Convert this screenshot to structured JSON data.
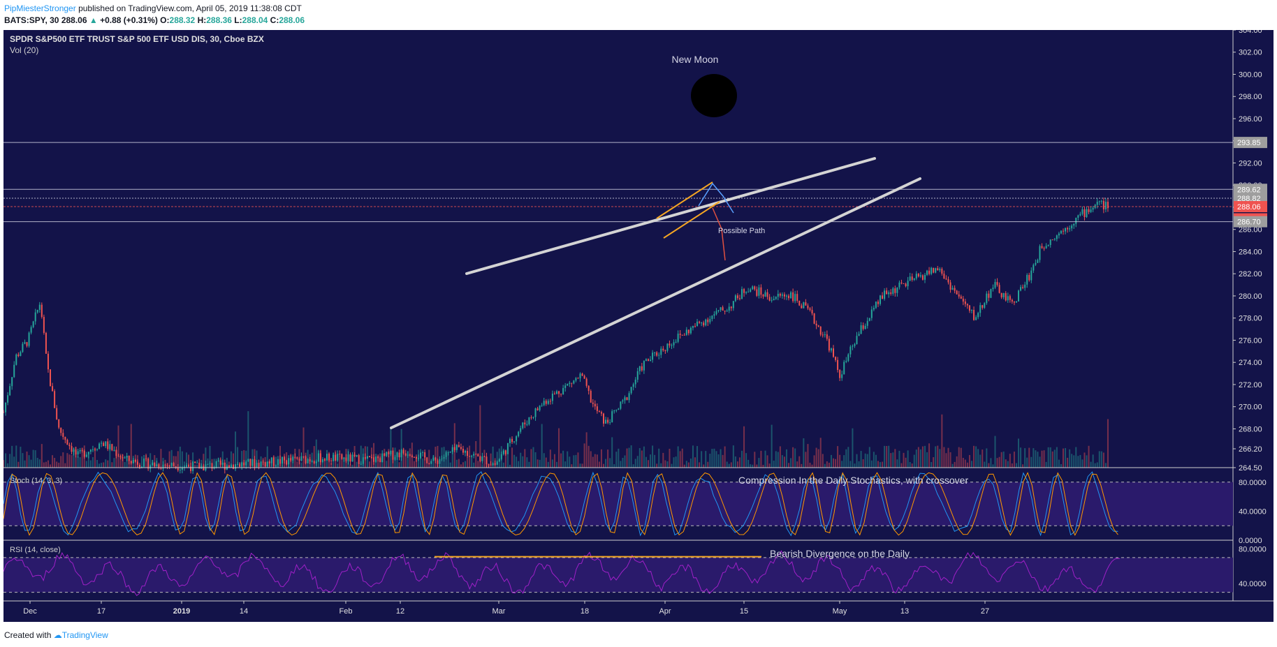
{
  "header": {
    "author": "PipMiesterStronger",
    "published_text": "published on TradingView.com, April 05, 2019 11:38:08 CDT",
    "symbol_line": "BATS:SPY, 30",
    "last_price": "288.06",
    "change": "+0.88 (+0.31%)",
    "open_label": "O:",
    "open": "288.32",
    "high_label": "H:",
    "high": "288.36",
    "low_label": "L:",
    "low": "288.04",
    "close_label": "C:",
    "close": "288.06"
  },
  "footer": {
    "created_with": "Created with",
    "brand": "TradingView"
  },
  "colors": {
    "background": "#131349",
    "lower_bg": "#2a1a6b",
    "candle_up": "#26a69a",
    "candle_down": "#ef5350",
    "trendline": "#d4d4d4",
    "stoch_k": "#2196f3",
    "stoch_d": "#ff9800",
    "rsi": "#a020c8",
    "flag": "#f5a623"
  },
  "chart_data": {
    "type": "candlestick",
    "title": "SPDR S&P500 ETF TRUST S&P 500 ETF USD DIS, 30, Cboe BZX",
    "volume_label": "Vol (20)",
    "ylim": [
      264.5,
      304.0
    ],
    "y_ticks": [
      "304.00",
      "302.00",
      "300.00",
      "298.00",
      "296.00",
      "294.00",
      "292.00",
      "290.00",
      "288.00",
      "286.00",
      "284.00",
      "282.00",
      "280.00",
      "278.00",
      "276.00",
      "274.00",
      "272.00",
      "270.00",
      "268.00",
      "266.20",
      "264.50"
    ],
    "price_tags": [
      {
        "value": 293.85,
        "label": "293.85",
        "color": "#9e9e9e"
      },
      {
        "value": 289.62,
        "label": "289.62",
        "color": "#9e9e9e"
      },
      {
        "value": 288.82,
        "label": "288.82",
        "color": "#9e9e9e"
      },
      {
        "value": 288.06,
        "label": "288.06",
        "color": "#ef5350"
      },
      {
        "value": 286.96,
        "label": "21:52",
        "color": "#ef5350"
      },
      {
        "value": 286.7,
        "label": "286.70",
        "color": "#9e9e9e"
      }
    ],
    "x_ticks": [
      "Dec",
      "17",
      "2019",
      "14",
      "Feb",
      "12",
      "Mar",
      "18",
      "Apr",
      "15",
      "May",
      "13",
      "27"
    ],
    "price_path": [
      {
        "x": 0.0,
        "y": 269.5
      },
      {
        "x": 0.01,
        "y": 274.5
      },
      {
        "x": 0.02,
        "y": 276.0
      },
      {
        "x": 0.03,
        "y": 279.5
      },
      {
        "x": 0.035,
        "y": 274.0
      },
      {
        "x": 0.045,
        "y": 268.0
      },
      {
        "x": 0.06,
        "y": 265.5
      },
      {
        "x": 0.08,
        "y": 266.8
      },
      {
        "x": 0.1,
        "y": 265.2
      },
      {
        "x": 0.12,
        "y": 264.8
      },
      {
        "x": 0.16,
        "y": 264.6
      },
      {
        "x": 0.22,
        "y": 265.0
      },
      {
        "x": 0.26,
        "y": 265.4
      },
      {
        "x": 0.3,
        "y": 265.2
      },
      {
        "x": 0.33,
        "y": 266.0
      },
      {
        "x": 0.35,
        "y": 265.0
      },
      {
        "x": 0.37,
        "y": 266.2
      },
      {
        "x": 0.4,
        "y": 264.8
      },
      {
        "x": 0.42,
        "y": 268.0
      },
      {
        "x": 0.44,
        "y": 270.5
      },
      {
        "x": 0.47,
        "y": 272.8
      },
      {
        "x": 0.48,
        "y": 270.0
      },
      {
        "x": 0.49,
        "y": 268.5
      },
      {
        "x": 0.505,
        "y": 270.5
      },
      {
        "x": 0.52,
        "y": 273.8
      },
      {
        "x": 0.545,
        "y": 276.0
      },
      {
        "x": 0.57,
        "y": 277.8
      },
      {
        "x": 0.59,
        "y": 279.0
      },
      {
        "x": 0.605,
        "y": 280.8
      },
      {
        "x": 0.625,
        "y": 279.8
      },
      {
        "x": 0.64,
        "y": 280.2
      },
      {
        "x": 0.655,
        "y": 278.5
      },
      {
        "x": 0.67,
        "y": 276.0
      },
      {
        "x": 0.68,
        "y": 272.8
      },
      {
        "x": 0.695,
        "y": 276.5
      },
      {
        "x": 0.715,
        "y": 280.0
      },
      {
        "x": 0.735,
        "y": 281.2
      },
      {
        "x": 0.76,
        "y": 282.5
      },
      {
        "x": 0.775,
        "y": 280.2
      },
      {
        "x": 0.79,
        "y": 278.0
      },
      {
        "x": 0.805,
        "y": 281.0
      },
      {
        "x": 0.82,
        "y": 279.2
      },
      {
        "x": 0.835,
        "y": 282.0
      },
      {
        "x": 0.845,
        "y": 284.6
      },
      {
        "x": 0.86,
        "y": 285.8
      },
      {
        "x": 0.875,
        "y": 287.2
      },
      {
        "x": 0.89,
        "y": 288.4
      },
      {
        "x": 0.9,
        "y": 288.0
      }
    ],
    "annotations": [
      {
        "text": "New Moon"
      },
      {
        "text": "Possible Path"
      },
      {
        "text": "Compression In the Daily Stochastics, with crossover"
      },
      {
        "text": "Bearish Divergence on the Daily"
      }
    ],
    "stoch": {
      "label": "Stoch (14, 3, 3)",
      "ylim": [
        0,
        100
      ],
      "levels": [
        80,
        20
      ],
      "y_ticks": [
        "80.0000",
        "40.0000",
        "0.0000"
      ]
    },
    "rsi": {
      "label": "RSI (14, close)",
      "ylim": [
        20,
        90
      ],
      "levels": [
        70,
        30
      ],
      "y_ticks": [
        "80.0000",
        "40.0000"
      ]
    }
  }
}
